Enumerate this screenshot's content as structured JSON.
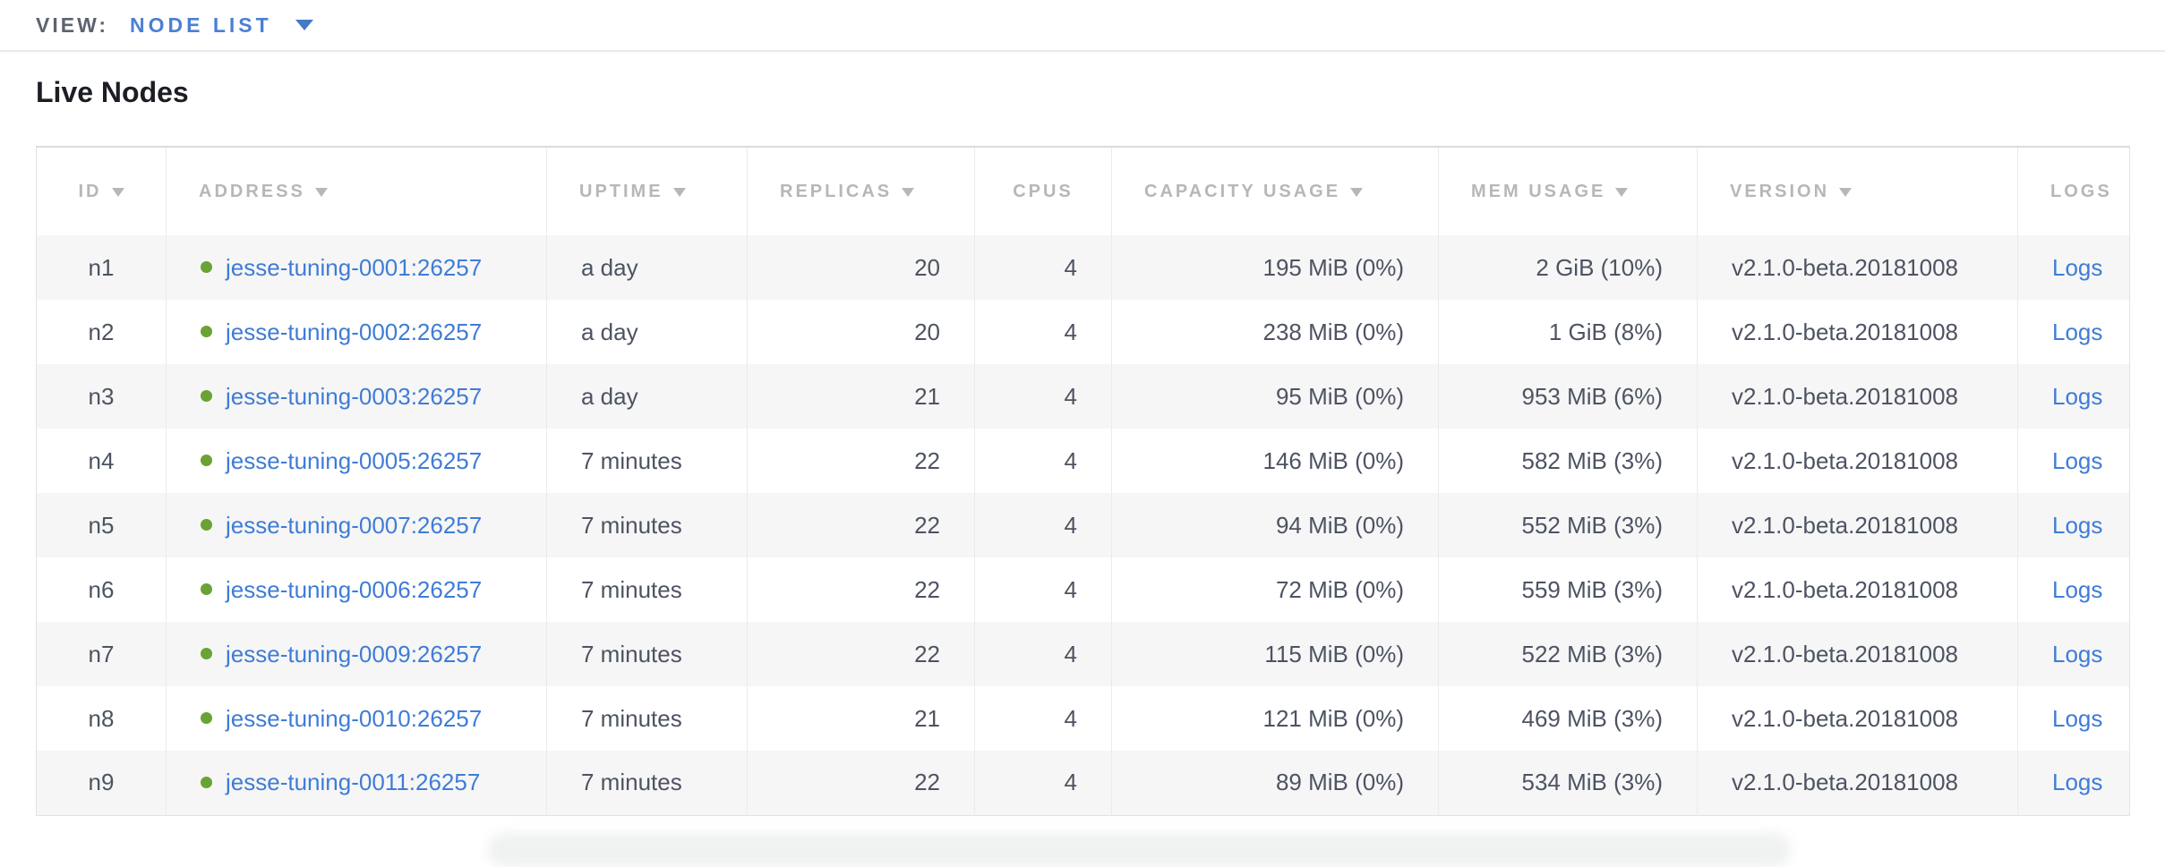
{
  "view_bar": {
    "label": "VIEW:",
    "selected": "NODE LIST"
  },
  "page": {
    "title": "Live Nodes"
  },
  "table": {
    "columns": [
      {
        "key": "id",
        "label": "ID",
        "sortable": true
      },
      {
        "key": "address",
        "label": "ADDRESS",
        "sortable": true
      },
      {
        "key": "uptime",
        "label": "UPTIME",
        "sortable": true
      },
      {
        "key": "replicas",
        "label": "REPLICAS",
        "sortable": true
      },
      {
        "key": "cpus",
        "label": "CPUS",
        "sortable": false
      },
      {
        "key": "capacity",
        "label": "CAPACITY USAGE",
        "sortable": true
      },
      {
        "key": "mem",
        "label": "MEM USAGE",
        "sortable": true
      },
      {
        "key": "version",
        "label": "VERSION",
        "sortable": true
      },
      {
        "key": "logs",
        "label": "LOGS",
        "sortable": false
      }
    ],
    "rows": [
      {
        "id": "n1",
        "status": "live",
        "address": "jesse-tuning-0001:26257",
        "uptime": "a day",
        "replicas": "20",
        "cpus": "4",
        "capacity": "195 MiB (0%)",
        "mem": "2 GiB (10%)",
        "version": "v2.1.0-beta.20181008",
        "logs": "Logs"
      },
      {
        "id": "n2",
        "status": "live",
        "address": "jesse-tuning-0002:26257",
        "uptime": "a day",
        "replicas": "20",
        "cpus": "4",
        "capacity": "238 MiB (0%)",
        "mem": "1 GiB (8%)",
        "version": "v2.1.0-beta.20181008",
        "logs": "Logs"
      },
      {
        "id": "n3",
        "status": "live",
        "address": "jesse-tuning-0003:26257",
        "uptime": "a day",
        "replicas": "21",
        "cpus": "4",
        "capacity": "95 MiB (0%)",
        "mem": "953 MiB (6%)",
        "version": "v2.1.0-beta.20181008",
        "logs": "Logs"
      },
      {
        "id": "n4",
        "status": "live",
        "address": "jesse-tuning-0005:26257",
        "uptime": "7 minutes",
        "replicas": "22",
        "cpus": "4",
        "capacity": "146 MiB (0%)",
        "mem": "582 MiB (3%)",
        "version": "v2.1.0-beta.20181008",
        "logs": "Logs"
      },
      {
        "id": "n5",
        "status": "live",
        "address": "jesse-tuning-0007:26257",
        "uptime": "7 minutes",
        "replicas": "22",
        "cpus": "4",
        "capacity": "94 MiB (0%)",
        "mem": "552 MiB (3%)",
        "version": "v2.1.0-beta.20181008",
        "logs": "Logs"
      },
      {
        "id": "n6",
        "status": "live",
        "address": "jesse-tuning-0006:26257",
        "uptime": "7 minutes",
        "replicas": "22",
        "cpus": "4",
        "capacity": "72 MiB (0%)",
        "mem": "559 MiB (3%)",
        "version": "v2.1.0-beta.20181008",
        "logs": "Logs"
      },
      {
        "id": "n7",
        "status": "live",
        "address": "jesse-tuning-0009:26257",
        "uptime": "7 minutes",
        "replicas": "22",
        "cpus": "4",
        "capacity": "115 MiB (0%)",
        "mem": "522 MiB (3%)",
        "version": "v2.1.0-beta.20181008",
        "logs": "Logs"
      },
      {
        "id": "n8",
        "status": "live",
        "address": "jesse-tuning-0010:26257",
        "uptime": "7 minutes",
        "replicas": "21",
        "cpus": "4",
        "capacity": "121 MiB (0%)",
        "mem": "469 MiB (3%)",
        "version": "v2.1.0-beta.20181008",
        "logs": "Logs"
      },
      {
        "id": "n9",
        "status": "live",
        "address": "jesse-tuning-0011:26257",
        "uptime": "7 minutes",
        "replicas": "22",
        "cpus": "4",
        "capacity": "89 MiB (0%)",
        "mem": "534 MiB (3%)",
        "version": "v2.1.0-beta.20181008",
        "logs": "Logs"
      }
    ]
  },
  "colors": {
    "link_blue": "#3f7cd6",
    "live_node_dot_green": "#6ba234",
    "header_text_gray": "#b5b7ba",
    "body_text_slate": "#4d5362"
  }
}
